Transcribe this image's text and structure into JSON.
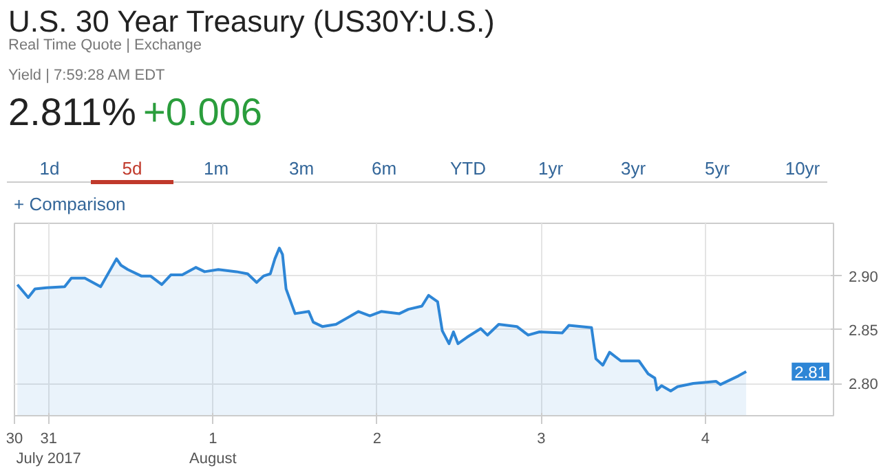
{
  "chart_data": {
    "type": "area",
    "title": "U.S. 30 Year Treasury (US30Y:U.S.)",
    "subtitle": "Real Time Quote | Exchange",
    "annotations": [
      "Yield | 7:59:28 AM EDT",
      "2.811%",
      "+0.006",
      "1d",
      "5d",
      "1m",
      "3m",
      "6m",
      "YTD",
      "1yr",
      "3yr",
      "5yr",
      "10yr",
      "+ Comparison",
      {
        "text": "2.81",
        "y": 2.811
      }
    ],
    "xlim": [
      "2017-07-30T19:00",
      "2017-08-04T18:43"
    ],
    "xticks": [
      {
        "value": "2017-07-30T19:00",
        "label": "30"
      },
      {
        "value": "2017-07-31",
        "label": "31\nJuly 2017"
      },
      {
        "value": "2017-08-01",
        "label": "1\nAugust"
      },
      {
        "value": "2017-08-02",
        "label": "2"
      },
      {
        "value": "2017-08-03",
        "label": "3"
      },
      {
        "value": "2017-08-04",
        "label": "4"
      }
    ],
    "ylim": [
      2.77,
      2.949
    ],
    "yticks": [
      {
        "value": 2.8,
        "label": "2.80"
      },
      {
        "value": 2.85,
        "label": "2.85"
      },
      {
        "value": 2.9,
        "label": "2.90"
      }
    ],
    "grid": true,
    "series": [
      {
        "color": "#2e86d6",
        "x": [
          "2017-07-30T19:26",
          "2017-07-30T21:01",
          "2017-07-30T22:00",
          "2017-07-30T23:40",
          "2017-07-31T02:20",
          "2017-07-31T03:19",
          "2017-07-31T05:17",
          "2017-07-31T07:36",
          "2017-07-31T09:55",
          "2017-07-31T10:34",
          "2017-07-31T11:34",
          "2017-07-31T13:32",
          "2017-07-31T14:53",
          "2017-07-31T16:32",
          "2017-07-31T17:51",
          "2017-07-31T19:31",
          "2017-07-31T21:30",
          "2017-07-31T22:48",
          "2017-08-01T00:48",
          "2017-08-01T03:26",
          "2017-08-01T05:05",
          "2017-08-01T06:24",
          "2017-08-01T07:25",
          "2017-08-01T08:24",
          "2017-08-01T09:04",
          "2017-08-01T09:43",
          "2017-08-01T10:11",
          "2017-08-01T10:42",
          "2017-08-01T12:01",
          "2017-08-01T14:01",
          "2017-08-01T14:41",
          "2017-08-01T16:00",
          "2017-08-01T18:00",
          "2017-08-01T21:17",
          "2017-08-01T22:57",
          "2017-08-02T00:36",
          "2017-08-02T03:16",
          "2017-08-02T04:34",
          "2017-08-02T06:33",
          "2017-08-02T07:32",
          "2017-08-02T08:51",
          "2017-08-02T09:32",
          "2017-08-02T10:31",
          "2017-08-02T11:10",
          "2017-08-02T11:50",
          "2017-08-02T13:09",
          "2017-08-02T15:09",
          "2017-08-02T16:08",
          "2017-08-02T17:47",
          "2017-08-02T20:26",
          "2017-08-02T22:05",
          "2017-08-02T23:44",
          "2017-08-03T03:03",
          "2017-08-03T04:02",
          "2017-08-03T07:21",
          "2017-08-03T07:59",
          "2017-08-03T09:00",
          "2017-08-03T09:59",
          "2017-08-03T11:38",
          "2017-08-03T14:17",
          "2017-08-03T14:57",
          "2017-08-03T15:37",
          "2017-08-03T16:36",
          "2017-08-03T16:55",
          "2017-08-03T17:35",
          "2017-08-03T18:55",
          "2017-08-03T19:55",
          "2017-08-03T22:13",
          "2017-08-04T01:32",
          "2017-08-04T02:11",
          "2017-08-04T04:49",
          "2017-08-04T05:57"
        ],
        "values": [
          2.892,
          2.88,
          2.888,
          2.889,
          2.89,
          2.898,
          2.898,
          2.89,
          2.916,
          2.91,
          2.906,
          2.9,
          2.9,
          2.892,
          2.901,
          2.901,
          2.908,
          2.904,
          2.906,
          2.904,
          2.902,
          2.894,
          2.9,
          2.902,
          2.916,
          2.926,
          2.92,
          2.888,
          2.865,
          2.867,
          2.857,
          2.853,
          2.855,
          2.867,
          2.863,
          2.867,
          2.865,
          2.869,
          2.872,
          2.882,
          2.876,
          2.849,
          2.837,
          2.848,
          2.837,
          2.843,
          2.851,
          2.845,
          2.855,
          2.853,
          2.845,
          2.848,
          2.847,
          2.854,
          2.852,
          2.823,
          2.817,
          2.829,
          2.821,
          2.821,
          2.815,
          2.809,
          2.805,
          2.794,
          2.798,
          2.793,
          2.797,
          2.8,
          2.802,
          2.799,
          2.807,
          2.811
        ]
      }
    ]
  }
}
